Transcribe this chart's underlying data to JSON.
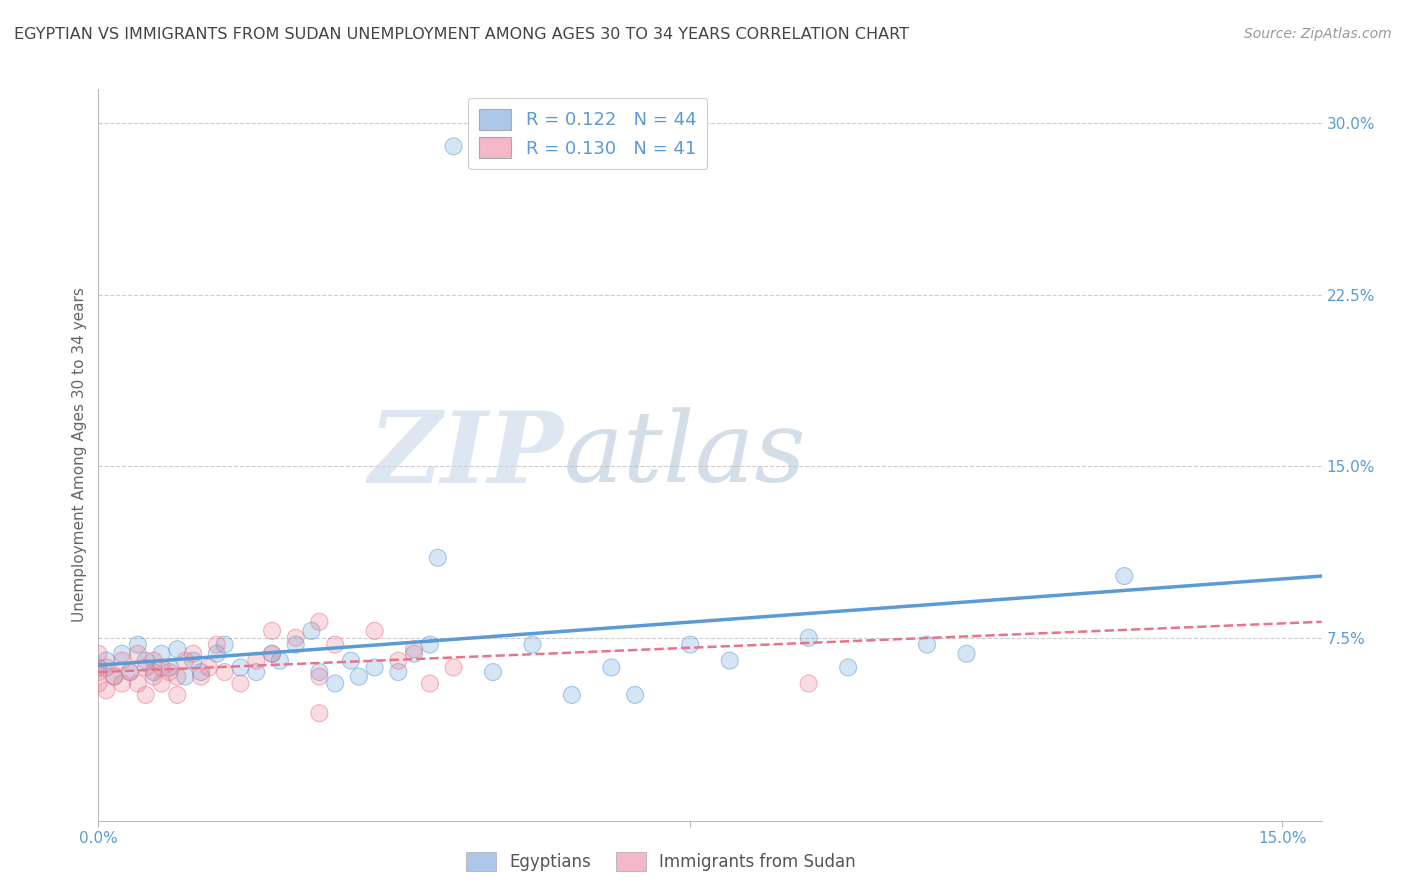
{
  "title": "EGYPTIAN VS IMMIGRANTS FROM SUDAN UNEMPLOYMENT AMONG AGES 30 TO 34 YEARS CORRELATION CHART",
  "source": "Source: ZipAtlas.com",
  "ylabel": "Unemployment Among Ages 30 to 34 years",
  "xlim": [
    0.0,
    0.155
  ],
  "ylim": [
    -0.005,
    0.315
  ],
  "yticks": [
    0.075,
    0.15,
    0.225,
    0.3
  ],
  "ytick_labels": [
    "7.5%",
    "15.0%",
    "22.5%",
    "30.0%"
  ],
  "xticks": [
    0.0,
    0.075,
    0.15
  ],
  "xtick_labels": [
    "0.0%",
    "",
    "15.0%"
  ],
  "legend_entries": [
    {
      "color": "#aec6e8",
      "R": "0.122",
      "N": "44"
    },
    {
      "color": "#f4b8c8",
      "R": "0.130",
      "N": "41"
    }
  ],
  "bottom_legend": [
    "Egyptians",
    "Immigrants from Sudan"
  ],
  "bottom_legend_colors": [
    "#aec6e8",
    "#f4b8c8"
  ],
  "blue_scatter": [
    [
      0.0,
      0.062
    ],
    [
      0.001,
      0.065
    ],
    [
      0.002,
      0.058
    ],
    [
      0.003,
      0.068
    ],
    [
      0.004,
      0.06
    ],
    [
      0.005,
      0.072
    ],
    [
      0.006,
      0.065
    ],
    [
      0.007,
      0.06
    ],
    [
      0.008,
      0.068
    ],
    [
      0.009,
      0.062
    ],
    [
      0.01,
      0.07
    ],
    [
      0.011,
      0.058
    ],
    [
      0.012,
      0.065
    ],
    [
      0.013,
      0.06
    ],
    [
      0.015,
      0.068
    ],
    [
      0.016,
      0.072
    ],
    [
      0.018,
      0.062
    ],
    [
      0.02,
      0.06
    ],
    [
      0.022,
      0.068
    ],
    [
      0.023,
      0.065
    ],
    [
      0.025,
      0.072
    ],
    [
      0.027,
      0.078
    ],
    [
      0.028,
      0.06
    ],
    [
      0.03,
      0.055
    ],
    [
      0.032,
      0.065
    ],
    [
      0.033,
      0.058
    ],
    [
      0.035,
      0.062
    ],
    [
      0.038,
      0.06
    ],
    [
      0.04,
      0.068
    ],
    [
      0.042,
      0.072
    ],
    [
      0.043,
      0.11
    ],
    [
      0.045,
      0.29
    ],
    [
      0.05,
      0.06
    ],
    [
      0.055,
      0.072
    ],
    [
      0.06,
      0.05
    ],
    [
      0.065,
      0.062
    ],
    [
      0.068,
      0.05
    ],
    [
      0.075,
      0.072
    ],
    [
      0.08,
      0.065
    ],
    [
      0.09,
      0.075
    ],
    [
      0.095,
      0.062
    ],
    [
      0.105,
      0.072
    ],
    [
      0.11,
      0.068
    ],
    [
      0.13,
      0.102
    ]
  ],
  "pink_scatter": [
    [
      0.0,
      0.06
    ],
    [
      0.0,
      0.055
    ],
    [
      0.0,
      0.068
    ],
    [
      0.001,
      0.052
    ],
    [
      0.001,
      0.062
    ],
    [
      0.002,
      0.058
    ],
    [
      0.003,
      0.065
    ],
    [
      0.003,
      0.055
    ],
    [
      0.004,
      0.06
    ],
    [
      0.005,
      0.068
    ],
    [
      0.005,
      0.055
    ],
    [
      0.006,
      0.062
    ],
    [
      0.006,
      0.05
    ],
    [
      0.007,
      0.058
    ],
    [
      0.007,
      0.065
    ],
    [
      0.008,
      0.062
    ],
    [
      0.008,
      0.055
    ],
    [
      0.009,
      0.06
    ],
    [
      0.01,
      0.058
    ],
    [
      0.01,
      0.05
    ],
    [
      0.011,
      0.065
    ],
    [
      0.012,
      0.068
    ],
    [
      0.013,
      0.058
    ],
    [
      0.014,
      0.062
    ],
    [
      0.015,
      0.072
    ],
    [
      0.016,
      0.06
    ],
    [
      0.018,
      0.055
    ],
    [
      0.02,
      0.065
    ],
    [
      0.022,
      0.078
    ],
    [
      0.022,
      0.068
    ],
    [
      0.025,
      0.075
    ],
    [
      0.028,
      0.082
    ],
    [
      0.028,
      0.058
    ],
    [
      0.03,
      0.072
    ],
    [
      0.035,
      0.078
    ],
    [
      0.038,
      0.065
    ],
    [
      0.04,
      0.07
    ],
    [
      0.042,
      0.055
    ],
    [
      0.045,
      0.062
    ],
    [
      0.09,
      0.055
    ],
    [
      0.028,
      0.042
    ]
  ],
  "blue_line_x": [
    0.0,
    0.155
  ],
  "blue_line_y": [
    0.063,
    0.102
  ],
  "pink_line_x": [
    0.0,
    0.155
  ],
  "pink_line_y": [
    0.06,
    0.082
  ],
  "title_color": "#444444",
  "blue_color": "#5b9bd5",
  "pink_color": "#e8748a",
  "grid_color": "#cccccc",
  "axis_label_color": "#5b9bd5",
  "title_fontsize": 11.5,
  "source_fontsize": 10
}
